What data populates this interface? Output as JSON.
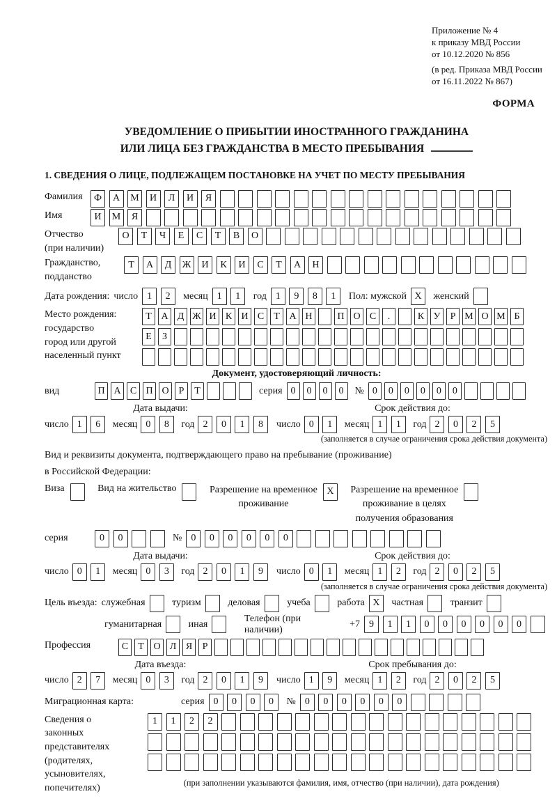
{
  "header": {
    "ref_lines": [
      "Приложение № 4",
      "к приказу МВД России",
      "от 10.12.2020 № 856",
      "(в ред. Приказа МВД России",
      "от 16.11.2022 № 867)"
    ],
    "form_label": "ФОРМА"
  },
  "title": {
    "line1": "УВЕДОМЛЕНИЕ О ПРИБЫТИИ ИНОСТРАННОГО ГРАЖДАНИНА",
    "line2": "ИЛИ ЛИЦА БЕЗ ГРАЖДАНСТВА В МЕСТО ПРЕБЫВАНИЯ"
  },
  "section1_heading": "1. СВЕДЕНИЯ О ЛИЦЕ, ПОДЛЕЖАЩЕМ ПОСТАНОВКЕ НА УЧЕТ ПО МЕСТУ ПРЕБЫВАНИЯ",
  "labels": {
    "day": "число",
    "month": "месяц",
    "year": "год",
    "seria": "серия",
    "num": "№",
    "issue_date": "Дата выдачи:",
    "valid_until": "Срок действия до:",
    "limit_note": "(заполняется в случае ограничения срока действия документа)"
  },
  "fields": {
    "surname": {
      "label": "Фамилия",
      "value": "ФАМИЛИЯ"
    },
    "given_name": {
      "label": "Имя",
      "value": "ИМЯ"
    },
    "patronymic": {
      "label": "Отчество",
      "label2": "(при наличии)",
      "value": "ОТЧЕСТВО"
    },
    "citizenship": {
      "label": "Гражданство,",
      "label2": "подданство",
      "value": "ТАДЖИКИСТАН"
    },
    "birth_date": {
      "label": "Дата рождения:",
      "day": "12",
      "month": "11",
      "year": "1981"
    },
    "sex": {
      "label_male": "Пол: мужской",
      "male": "X",
      "label_female": "женский",
      "female": ""
    },
    "birth_place": {
      "label_lines": [
        "Место рождения:",
        "государство",
        "город или другой",
        "населенный пункт"
      ],
      "row1": "ТАДЖИКИСТАН ПОС. КУРМОМБ",
      "row2": "ЕЗ",
      "row3": ""
    },
    "identity_doc": {
      "heading": "Документ, удостоверяющий личность:",
      "kind_label": "вид",
      "kind": "ПАСПОРТ",
      "seria": "0000",
      "number": "000000",
      "issue": {
        "day": "16",
        "month": "08",
        "year": "2018"
      },
      "valid": {
        "day": "01",
        "month": "11",
        "year": "2025"
      }
    },
    "residence_doc": {
      "intro_line1": "Вид и реквизиты документа, подтверждающего право на пребывание (проживание)",
      "intro_line2": "в Российской Федерации:",
      "options": [
        {
          "l1": "Виза",
          "mark": ""
        },
        {
          "l1": "Вид на жительство",
          "mark": ""
        },
        {
          "l1": "Разрешение на временное",
          "l2": "проживание",
          "mark": "X"
        },
        {
          "l1": "Разрешение на временное",
          "l2": "проживание в целях",
          "l3": "получения образования",
          "mark": ""
        }
      ],
      "seria": "00",
      "number": "000000",
      "issue": {
        "day": "01",
        "month": "03",
        "year": "2019"
      },
      "valid": {
        "day": "01",
        "month": "12",
        "year": "2025"
      }
    },
    "purpose": {
      "label": "Цель въезда:",
      "options": [
        {
          "label": "служебная",
          "mark": ""
        },
        {
          "label": "туризм",
          "mark": ""
        },
        {
          "label": "деловая",
          "mark": ""
        },
        {
          "label": "учеба",
          "mark": ""
        },
        {
          "label": "работа",
          "mark": "X"
        },
        {
          "label": "частная",
          "mark": ""
        },
        {
          "label": "транзит",
          "mark": ""
        },
        {
          "label": "гуманитарная",
          "mark": ""
        },
        {
          "label": "иная",
          "mark": ""
        }
      ],
      "phone_label": "Телефон (при наличии)",
      "phone_prefix": "+7",
      "phone": "911000000"
    },
    "profession": {
      "label": "Профессия",
      "value": "СТОЛЯР"
    },
    "entry": {
      "heading": "Дата въезда:",
      "day": "27",
      "month": "03",
      "year": "2019"
    },
    "stay": {
      "heading": "Срок пребывания до:",
      "day": "19",
      "month": "12",
      "year": "2025"
    },
    "migration_card": {
      "label": "Миграционная карта:",
      "seria": "0000",
      "number": "000000"
    },
    "legal_reps": {
      "label_lines": [
        "Сведения о",
        "законных",
        "представителях",
        "(родителях,",
        "усыновителях,",
        "попечителях)"
      ],
      "row1": "1122",
      "row2": "",
      "row3": "",
      "note": "(при заполнении указываются фамилия, имя, отчество (при наличии), дата рождения)"
    }
  }
}
